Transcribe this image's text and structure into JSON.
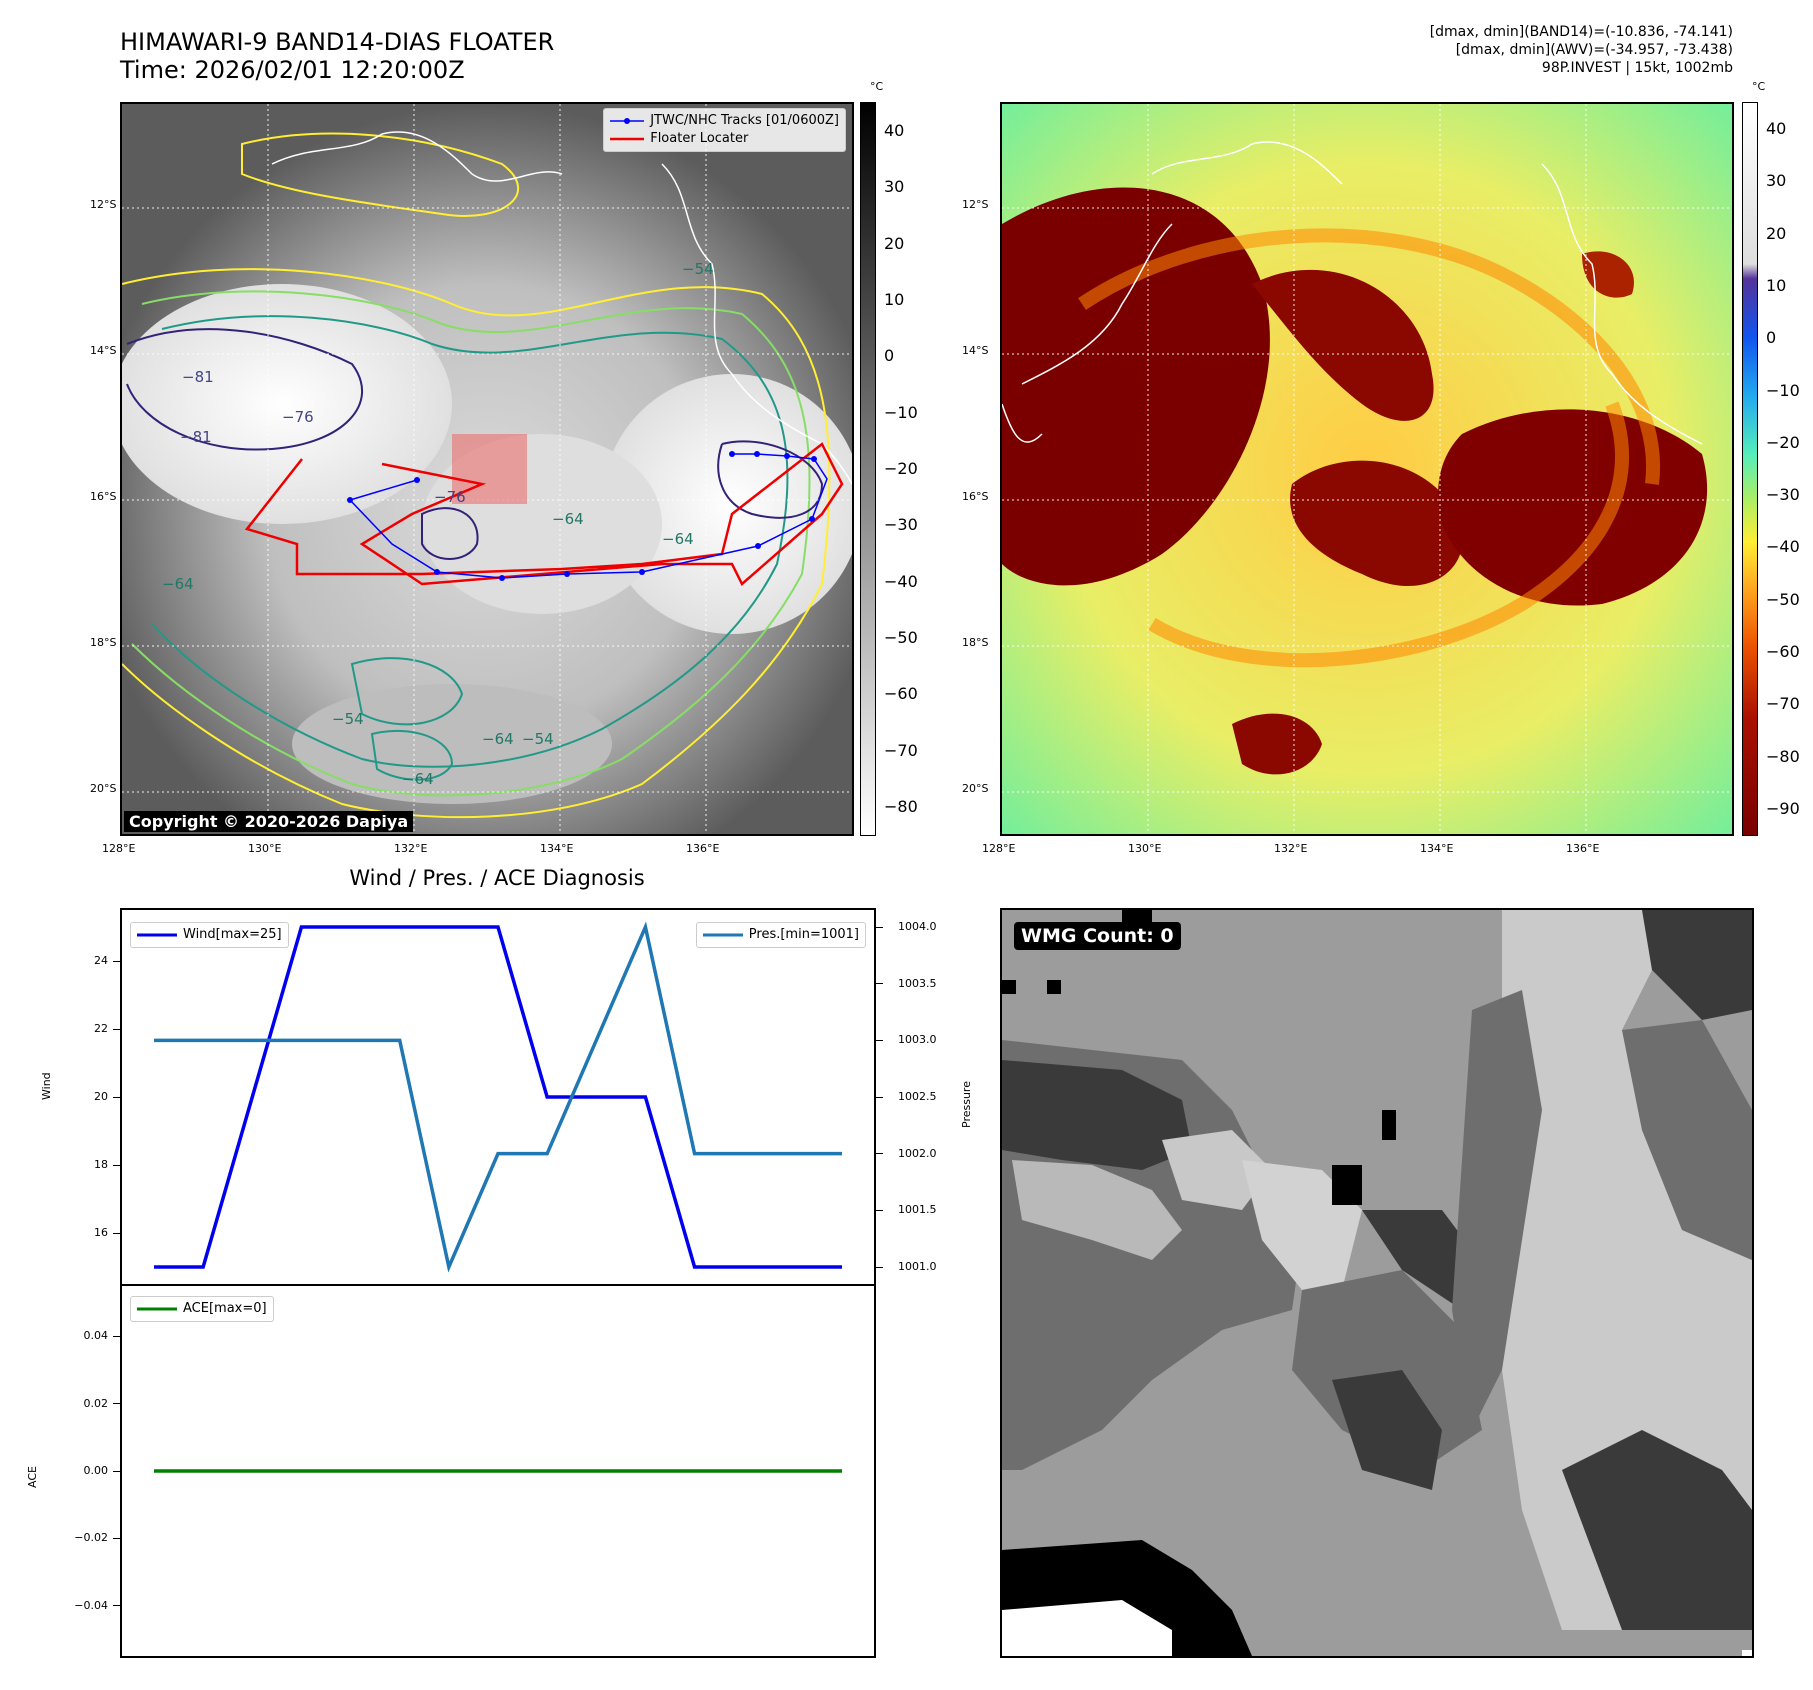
{
  "header": {
    "title_line1": "HIMAWARI-9 BAND14-DIAS FLOATER",
    "title_line2": "Time: 2026/02/01 12:20:00Z",
    "info_line1": "[dmax, dmin](BAND14)=(-10.836, -74.141)",
    "info_line2": "[dmax, dmin](AWV)=(-34.957, -73.438)",
    "info_line3": "98P.INVEST | 15kt, 1002mb"
  },
  "map_axes": {
    "lon_labels": [
      "128°E",
      "130°E",
      "132°E",
      "134°E",
      "136°E"
    ],
    "lat_labels": [
      "12°S",
      "14°S",
      "16°S",
      "18°S",
      "20°S"
    ]
  },
  "colorbar_left": {
    "unit": "°C",
    "ticks": [
      "40",
      "30",
      "20",
      "10",
      "0",
      "−10",
      "−20",
      "−30",
      "−40",
      "−50",
      "−60",
      "−70",
      "−80"
    ]
  },
  "colorbar_right": {
    "unit": "°C",
    "ticks": [
      "40",
      "30",
      "20",
      "10",
      "0",
      "−10",
      "−20",
      "−30",
      "−40",
      "−50",
      "−60",
      "−70",
      "−80",
      "−90"
    ]
  },
  "map_legend": {
    "tracks_label": "JTWC/NHC Tracks [01/0600Z]",
    "locator_label": "Floater Locater"
  },
  "contour_labels": [
    "−81",
    "−81",
    "−76",
    "−76",
    "−64",
    "−64",
    "−64",
    "−54",
    "−54",
    "−64",
    "−64",
    "−54"
  ],
  "copyright": "Copyright © 2020-2026 Dapiya",
  "wmg_count": "WMG Count: 0",
  "colors": {
    "wind": "#0000ee",
    "pressure": "#1f77b4",
    "ace": "#008000",
    "track": "#0000ff",
    "locator": "#ee0000"
  },
  "chart_data": [
    {
      "type": "line",
      "title": "Wind / Pres. / ACE Diagnosis",
      "x": [
        0,
        1,
        2,
        3,
        4,
        5,
        6,
        7,
        8,
        9,
        10,
        11,
        12,
        13,
        14
      ],
      "series": [
        {
          "name": "Wind[max=25]",
          "axis": "left",
          "values": [
            15,
            15,
            20,
            25,
            25,
            25,
            25,
            25,
            20,
            20,
            20,
            15,
            15,
            15,
            15
          ]
        },
        {
          "name": "Pres.[min=1001]",
          "axis": "right",
          "values": [
            1003,
            1003,
            1003,
            1003,
            1003,
            1003,
            1001,
            1002,
            1002,
            1003,
            1004,
            1002,
            1002,
            1002,
            1002
          ]
        }
      ],
      "ylabel": "Wind",
      "ylabel_right": "Pressure",
      "ylim": [
        14.5,
        25.5
      ],
      "ylim_right": [
        1000.85,
        1004.15
      ],
      "yticks": [
        "16",
        "18",
        "20",
        "22",
        "24"
      ],
      "yticks_right": [
        "1001.0",
        "1001.5",
        "1002.0",
        "1002.5",
        "1003.0",
        "1003.5",
        "1004.0"
      ]
    },
    {
      "type": "line",
      "x": [
        0,
        1,
        2,
        3,
        4,
        5,
        6,
        7,
        8,
        9,
        10,
        11,
        12,
        13,
        14
      ],
      "series": [
        {
          "name": "ACE[max=0]",
          "values": [
            0,
            0,
            0,
            0,
            0,
            0,
            0,
            0,
            0,
            0,
            0,
            0,
            0,
            0,
            0
          ]
        }
      ],
      "ylabel": "ACE",
      "ylim": [
        -0.055,
        0.055
      ],
      "yticks": [
        "0.04",
        "0.02",
        "0.00",
        "−0.02",
        "−0.04"
      ]
    }
  ]
}
